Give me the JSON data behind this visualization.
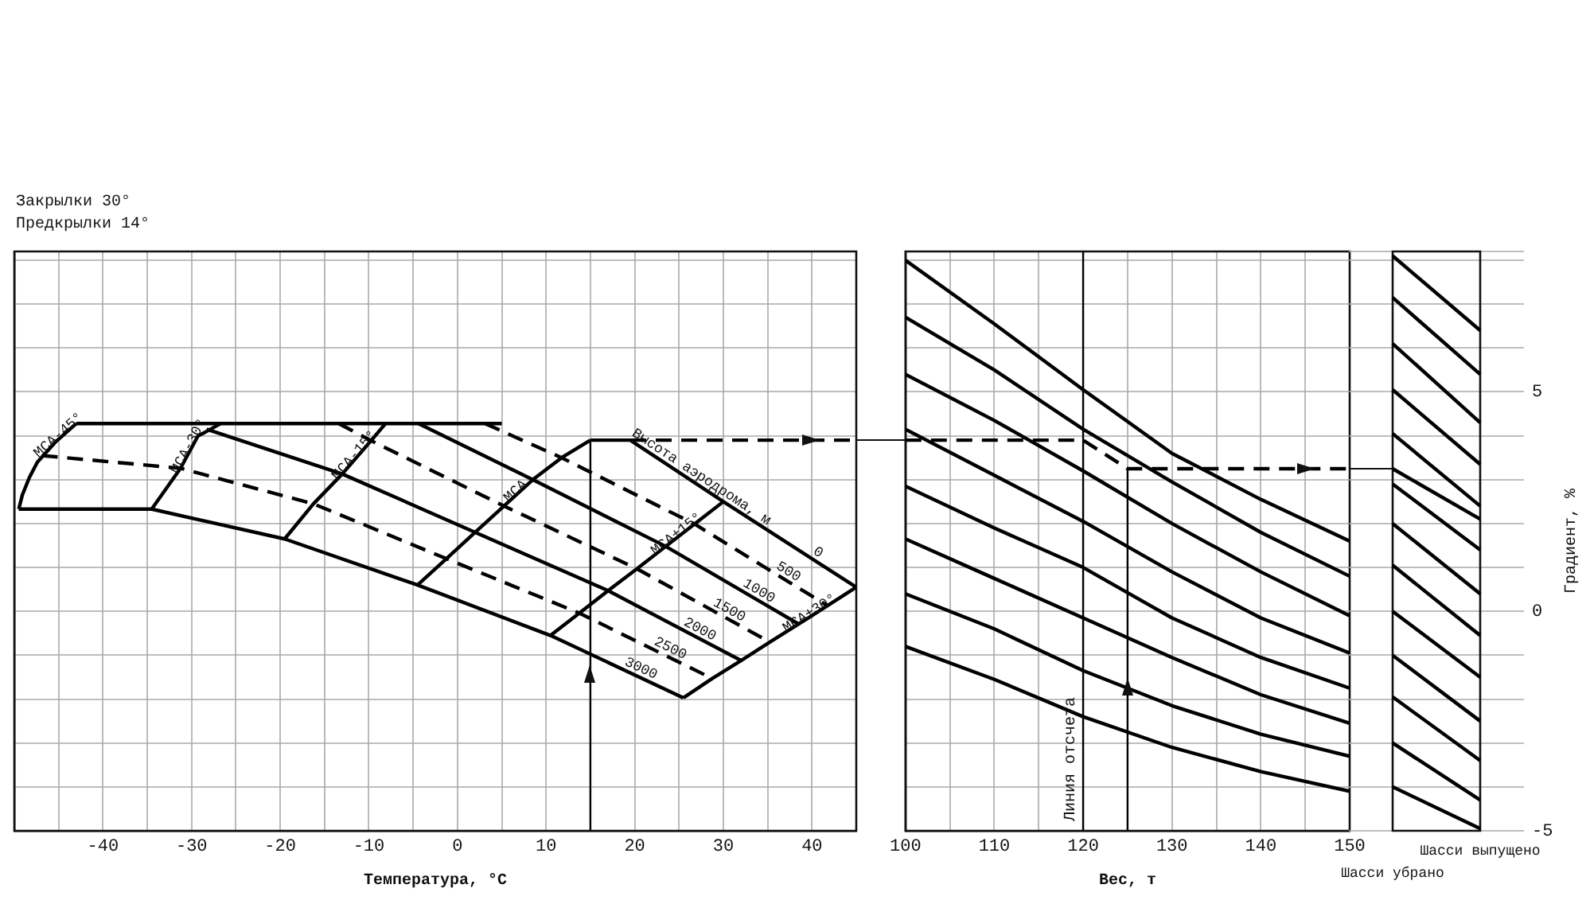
{
  "chart_data": [
    {
      "type": "line",
      "annotations": [
        "Закрылки 30°",
        "Предкрылки 14°",
        {
          "text": "Высота аэродрома, м",
          "x": 27,
          "y": 2.9
        }
      ],
      "xlabel": "Температура, °C",
      "xlim": [
        -50,
        45
      ],
      "xticks": [
        {
          "value": -45,
          "label": null
        },
        -40,
        {
          "value": -35,
          "label": null
        },
        -30,
        {
          "value": -25,
          "label": null
        },
        -20,
        {
          "value": -15,
          "label": null
        },
        -10,
        {
          "value": -5,
          "label": null
        },
        0,
        {
          "value": 5,
          "label": null
        },
        10,
        {
          "value": 15,
          "label": null
        },
        20,
        {
          "value": 25,
          "label": null
        },
        30,
        {
          "value": 35,
          "label": null
        },
        40
      ],
      "ylim": [
        -5,
        8.2
      ],
      "yticks": [
        {
          "value": -5,
          "label": null
        },
        {
          "value": -4,
          "label": null
        },
        {
          "value": -3,
          "label": null
        },
        {
          "value": -2,
          "label": null
        },
        {
          "value": -1,
          "label": null
        },
        {
          "value": 0,
          "label": null
        },
        {
          "value": 1,
          "label": null
        },
        {
          "value": 2,
          "label": null
        },
        {
          "value": 3,
          "label": null
        },
        {
          "value": 4,
          "label": null
        },
        {
          "value": 5,
          "label": null
        },
        {
          "value": 6,
          "label": null
        },
        {
          "value": 7,
          "label": null
        },
        {
          "value": 8,
          "label": null
        }
      ],
      "tick_labels": "x",
      "grid": true,
      "legend": false,
      "marker": "none",
      "series": [
        {
          "name": "0",
          "color": "#000000",
          "x": [
            15,
            19.5,
            30,
            45
          ],
          "values": [
            3.9,
            3.9,
            2.5,
            0.55
          ]
        },
        {
          "name": "500",
          "color": "#000000",
          "line_style": "dashed",
          "x": [
            3.1,
            11.75,
            26.75,
            41.75
          ],
          "values": [
            4.28,
            3.5,
            1.99,
            0.13
          ]
        },
        {
          "name": "1000",
          "color": "#000000",
          "x": [
            -4.4,
            8.5,
            23.5,
            38.5
          ],
          "values": [
            4.28,
            3.0,
            1.48,
            -0.29
          ]
        },
        {
          "name": "1500",
          "color": "#000000",
          "line_style": "dashed",
          "x": [
            -13.4,
            -9.75,
            5.25,
            20.25,
            35.25
          ],
          "values": [
            4.28,
            3.89,
            2.4,
            0.97,
            -0.7
          ]
        },
        {
          "name": "2000",
          "color": "#000000",
          "x": [
            -28.3,
            -13,
            2,
            17,
            32
          ],
          "values": [
            4.15,
            3.13,
            1.8,
            0.47,
            -1.12
          ]
        },
        {
          "name": "2500",
          "color": "#000000",
          "line_style": "dashed",
          "x": [
            -46.9,
            -31.25,
            -16.25,
            -1.25,
            13.75,
            28.75
          ],
          "values": [
            3.55,
            3.26,
            2.45,
            1.2,
            -0.04,
            -1.53
          ]
        },
        {
          "name": "3000",
          "color": "#000000",
          "x": [
            -49.5,
            -34.5,
            -19.5,
            -4.5,
            10.5,
            25.5
          ],
          "values": [
            2.33,
            2.33,
            1.65,
            0.6,
            -0.55,
            -1.97
          ]
        },
        {
          "name": "МСА-45°",
          "color": "#000000",
          "x": [
            -49.5,
            -49.1,
            -48.3,
            -47.4,
            -45.4,
            -43
          ],
          "values": [
            2.33,
            2.65,
            3.05,
            3.4,
            3.85,
            4.28
          ]
        },
        {
          "name": "МСА-30°",
          "color": "#000000",
          "x": [
            -34.5,
            -31.25,
            -29.3,
            -26.7
          ],
          "values": [
            2.33,
            3.26,
            3.99,
            4.28
          ]
        },
        {
          "name": "МСА-15°",
          "color": "#000000",
          "x": [
            -19.5,
            -16.25,
            -13,
            -9.75,
            -8.1
          ],
          "values": [
            1.65,
            2.45,
            3.13,
            3.89,
            4.28
          ]
        },
        {
          "name": "МСА",
          "color": "#000000",
          "x": [
            -4.5,
            -1.25,
            2,
            5.25,
            8.5,
            11.75,
            15
          ],
          "values": [
            0.6,
            1.2,
            1.8,
            2.4,
            3.0,
            3.5,
            3.9
          ]
        },
        {
          "name": "МСА+15°",
          "color": "#000000",
          "x": [
            10.5,
            13.75,
            17,
            20.25,
            23.5,
            26.75,
            30
          ],
          "values": [
            -0.55,
            -0.04,
            0.47,
            0.97,
            1.48,
            1.99,
            2.5
          ]
        },
        {
          "name": "МСА+30°",
          "color": "#000000",
          "x": [
            25.5,
            28.75,
            32,
            35.25,
            38.5,
            41.75,
            45
          ],
          "values": [
            -1.97,
            -1.53,
            -1.12,
            -0.7,
            -0.29,
            0.13,
            0.55
          ]
        },
        {
          "color": "#000000",
          "x": [
            -43,
            5
          ],
          "values": [
            4.28,
            4.28
          ]
        },
        {
          "color": "#000000",
          "x": [
            15,
            15
          ],
          "values": [
            -5,
            3.9
          ]
        },
        {
          "color": "#000000",
          "line_style": "dashed",
          "x": [
            19.5,
            45
          ],
          "values": [
            3.9,
            3.9
          ]
        }
      ]
    },
    {
      "type": "line",
      "xlabel": "Вес, т",
      "xlim": [
        100,
        150
      ],
      "xticks": [
        100,
        {
          "value": 105,
          "label": null
        },
        110,
        {
          "value": 115,
          "label": null
        },
        120,
        {
          "value": 125,
          "label": null
        },
        130,
        {
          "value": 135,
          "label": null
        },
        140,
        {
          "value": 145,
          "label": null
        },
        150
      ],
      "ylim": [
        -5,
        8.2
      ],
      "yticks": [
        {
          "value": -5,
          "label": null
        },
        {
          "value": -4,
          "label": null
        },
        {
          "value": -3,
          "label": null
        },
        {
          "value": -2,
          "label": null
        },
        {
          "value": -1,
          "label": null
        },
        {
          "value": 0,
          "label": null
        },
        {
          "value": 1,
          "label": null
        },
        {
          "value": 2,
          "label": null
        },
        {
          "value": 3,
          "label": null
        },
        {
          "value": 4,
          "label": null
        },
        {
          "value": 5,
          "label": null
        },
        {
          "value": 6,
          "label": null
        },
        {
          "value": 7,
          "label": null
        },
        {
          "value": 8,
          "label": null
        }
      ],
      "tick_labels": "x",
      "grid": true,
      "legend": false,
      "marker": "none",
      "ref_lines": [
        {
          "axis": "x",
          "value": 120,
          "label": "Линия отсчета",
          "color": "#000000"
        }
      ],
      "x": [
        100,
        110,
        120,
        130,
        140,
        150
      ],
      "series": [
        {
          "color": "#000000",
          "values": [
            8.0,
            6.55,
            5.05,
            3.6,
            2.55,
            1.6
          ]
        },
        {
          "color": "#000000",
          "values": [
            6.7,
            5.5,
            4.15,
            2.95,
            1.8,
            0.8
          ]
        },
        {
          "color": "#000000",
          "values": [
            5.4,
            4.35,
            3.2,
            2.0,
            0.9,
            -0.1
          ]
        },
        {
          "color": "#000000",
          "values": [
            4.15,
            3.1,
            2.05,
            0.9,
            -0.15,
            -0.95
          ]
        },
        {
          "color": "#000000",
          "values": [
            2.85,
            1.9,
            1.0,
            -0.15,
            -1.05,
            -1.75
          ]
        },
        {
          "color": "#000000",
          "values": [
            1.65,
            0.75,
            -0.15,
            -1.05,
            -1.9,
            -2.55
          ]
        },
        {
          "color": "#000000",
          "values": [
            0.4,
            -0.4,
            -1.35,
            -2.15,
            -2.8,
            -3.3
          ]
        },
        {
          "color": "#000000",
          "values": [
            -0.8,
            -1.55,
            -2.4,
            -3.1,
            -3.65,
            -4.1
          ]
        },
        {
          "color": "#000000",
          "x": [
            125,
            125
          ],
          "values": [
            -5,
            3.25
          ]
        },
        {
          "color": "#000000",
          "line_style": "dashed",
          "x": [
            100,
            120,
            125,
            150
          ],
          "values": [
            3.9,
            3.9,
            3.25,
            3.25
          ]
        }
      ]
    },
    {
      "type": "line",
      "categories": [
        "Шасси убрано",
        "Шасси выпущено"
      ],
      "ylabel": "Градиент, %",
      "ylim": [
        -5,
        8.2
      ],
      "yticks": [
        -5,
        {
          "value": -4,
          "label": null
        },
        {
          "value": -3,
          "label": null
        },
        {
          "value": -2,
          "label": null
        },
        {
          "value": -1,
          "label": null
        },
        0,
        {
          "value": 1,
          "label": null
        },
        {
          "value": 2,
          "label": null
        },
        {
          "value": 3,
          "label": null
        },
        {
          "value": 4,
          "label": null
        },
        5,
        {
          "value": 6,
          "label": null
        },
        {
          "value": 7,
          "label": null
        },
        {
          "value": 8,
          "label": null
        },
        {
          "value": 8.2,
          "label": null
        }
      ],
      "grid": true,
      "legend": false,
      "marker": "none",
      "series": [
        {
          "color": "#000000",
          "values": [
            8.1,
            6.4
          ]
        },
        {
          "color": "#000000",
          "values": [
            7.15,
            5.4
          ]
        },
        {
          "color": "#000000",
          "values": [
            6.1,
            4.3
          ]
        },
        {
          "color": "#000000",
          "values": [
            5.05,
            3.35
          ]
        },
        {
          "color": "#000000",
          "values": [
            4.05,
            2.4
          ]
        },
        {
          "color": "#000000",
          "values": [
            2.9,
            1.4
          ]
        },
        {
          "color": "#000000",
          "values": [
            2.0,
            0.4
          ]
        },
        {
          "color": "#000000",
          "values": [
            1.05,
            -0.55
          ]
        },
        {
          "color": "#000000",
          "values": [
            0.0,
            -1.5
          ]
        },
        {
          "color": "#000000",
          "values": [
            -1.0,
            -2.5
          ]
        },
        {
          "color": "#000000",
          "values": [
            -1.95,
            -3.4
          ]
        },
        {
          "color": "#000000",
          "values": [
            -3.0,
            -4.3
          ]
        },
        {
          "color": "#000000",
          "values": [
            -4.0,
            -4.95
          ]
        },
        {
          "color": "#000000",
          "values": [
            3.25,
            2.1
          ]
        }
      ]
    }
  ]
}
